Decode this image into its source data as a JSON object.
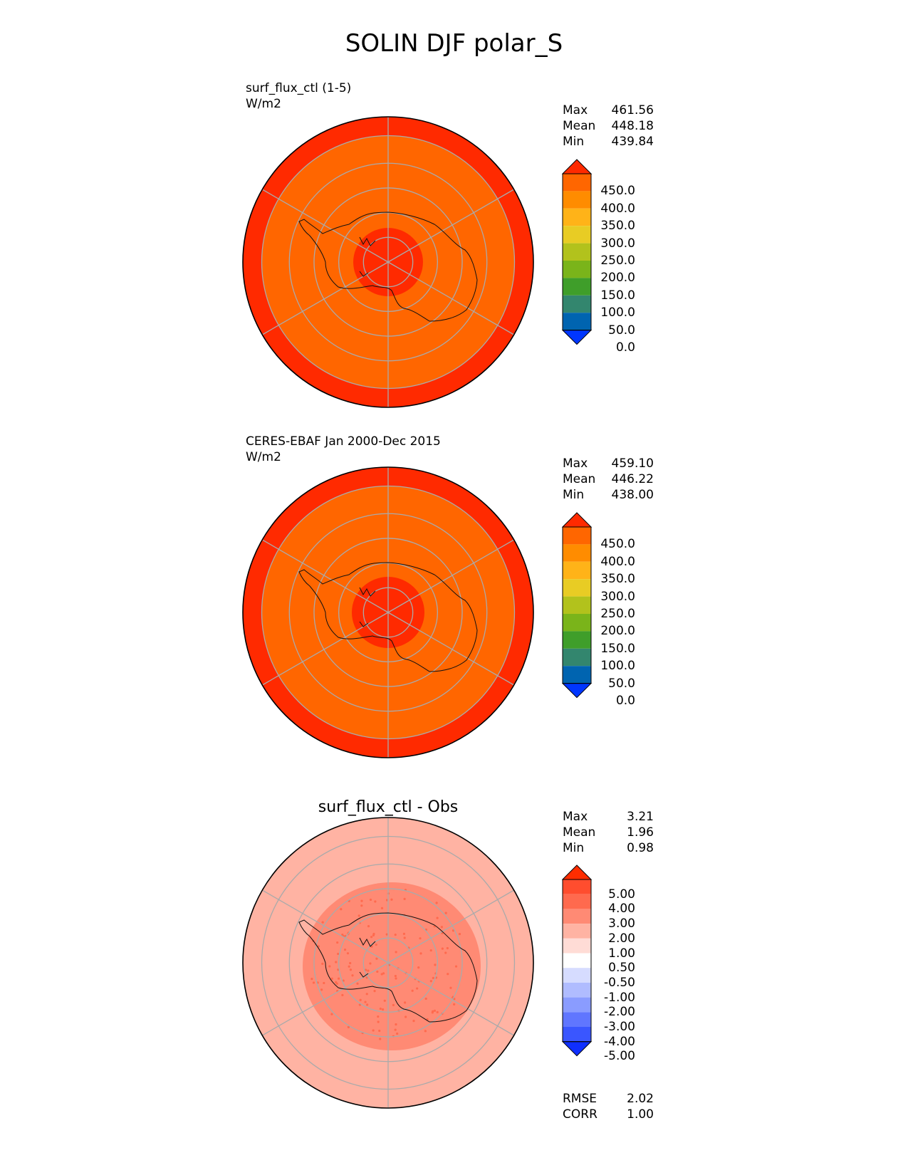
{
  "title": "SOLIN DJF polar_S",
  "panels": [
    {
      "id": "test",
      "title_line1": "surf_flux_ctl (1-5)",
      "title_line2": "W/m2",
      "stats": [
        {
          "label": "Max",
          "value": "461.56"
        },
        {
          "label": "Mean",
          "value": "448.18"
        },
        {
          "label": "Min",
          "value": "439.84"
        }
      ],
      "colorbar_ticks": [
        "450.0",
        "400.0",
        "350.0",
        "300.0",
        "250.0",
        "200.0",
        "150.0",
        "100.0",
        "50.0",
        "0.0"
      ],
      "colors": [
        "#ff2a00",
        "#ff6600",
        "#ff8c00",
        "#ffb318",
        "#e8cc24",
        "#b2c21c",
        "#7ab41a",
        "#3f9e2a",
        "#33866e",
        "#0064b0",
        "#0036ff"
      ]
    },
    {
      "id": "ref",
      "title_line1": "CERES-EBAF Jan 2000-Dec 2015",
      "title_line2": "W/m2",
      "stats": [
        {
          "label": "Max",
          "value": "459.10"
        },
        {
          "label": "Mean",
          "value": "446.22"
        },
        {
          "label": "Min",
          "value": "438.00"
        }
      ],
      "colorbar_ticks": [
        "450.0",
        "400.0",
        "350.0",
        "300.0",
        "250.0",
        "200.0",
        "150.0",
        "100.0",
        "50.0",
        "0.0"
      ],
      "colors": [
        "#ff2a00",
        "#ff6600",
        "#ff8c00",
        "#ffb318",
        "#e8cc24",
        "#b2c21c",
        "#7ab41a",
        "#3f9e2a",
        "#33866e",
        "#0064b0",
        "#0036ff"
      ]
    },
    {
      "id": "diff",
      "title": "surf_flux_ctl - Obs",
      "stats": [
        {
          "label": "Max",
          "value": "3.21"
        },
        {
          "label": "Mean",
          "value": "1.96"
        },
        {
          "label": "Min",
          "value": "0.98"
        }
      ],
      "colorbar_ticks": [
        "5.00",
        "4.00",
        "3.00",
        "2.00",
        "1.00",
        "0.50",
        "-0.50",
        "-1.00",
        "-2.00",
        "-3.00",
        "-4.00",
        "-5.00"
      ],
      "colors": [
        "#ff2d00",
        "#ff4d2e",
        "#ff6a4e",
        "#ff8a74",
        "#ffb3a3",
        "#ffdcd6",
        "#ffffff",
        "#d6dcff",
        "#b0bcff",
        "#8a9cff",
        "#6076ff",
        "#3a56ff",
        "#0f2fff"
      ],
      "metrics": [
        {
          "label": "RMSE",
          "value": "2.02"
        },
        {
          "label": "CORR",
          "value": "1.00"
        }
      ]
    }
  ],
  "chart_data": [
    {
      "type": "heatmap",
      "projection": "south-polar-stereographic",
      "title": "surf_flux_ctl (1-5)",
      "units": "W/m2",
      "levels": [
        0,
        50,
        100,
        150,
        200,
        250,
        300,
        350,
        400,
        450
      ],
      "zones": [
        {
          "region": "outer latitude band",
          "value": 455
        },
        {
          "region": "mid latitudes / continent",
          "value": 445
        },
        {
          "region": "pole cap",
          "value": 455
        }
      ],
      "stats": {
        "max": 461.56,
        "mean": 448.18,
        "min": 439.84
      }
    },
    {
      "type": "heatmap",
      "projection": "south-polar-stereographic",
      "title": "CERES-EBAF Jan 2000-Dec 2015",
      "units": "W/m2",
      "levels": [
        0,
        50,
        100,
        150,
        200,
        250,
        300,
        350,
        400,
        450
      ],
      "zones": [
        {
          "region": "outer latitude band",
          "value": 455
        },
        {
          "region": "mid latitudes / continent",
          "value": 444
        },
        {
          "region": "pole cap",
          "value": 452
        }
      ],
      "stats": {
        "max": 459.1,
        "mean": 446.22,
        "min": 438.0
      }
    },
    {
      "type": "heatmap",
      "projection": "south-polar-stereographic",
      "title": "surf_flux_ctl - Obs",
      "levels": [
        -5,
        -4,
        -3,
        -2,
        -1,
        -0.5,
        0.5,
        1,
        2,
        3,
        4,
        5
      ],
      "zones": [
        {
          "region": "outer ocean",
          "value": 1.5
        },
        {
          "region": "continent",
          "value": 2.5
        },
        {
          "region": "scattered points",
          "value": 3.5
        }
      ],
      "stats": {
        "max": 3.21,
        "mean": 1.96,
        "min": 0.98,
        "rmse": 2.02,
        "corr": 1.0
      }
    }
  ]
}
